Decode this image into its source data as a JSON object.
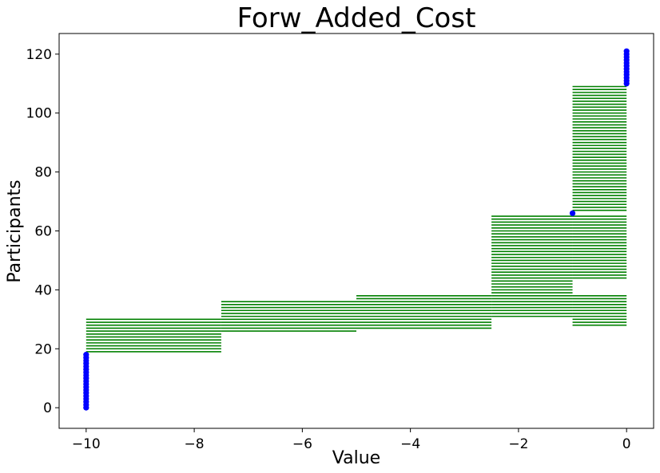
{
  "chart_data": {
    "type": "scatter",
    "title": "Forw_Added_Cost",
    "xlabel": "Value",
    "ylabel": "Participants",
    "xlim": [
      -10.5,
      0.5
    ],
    "ylim": [
      -7,
      127
    ],
    "x_ticks": [
      -10,
      -8,
      -6,
      -4,
      -2,
      0
    ],
    "x_tick_labels": [
      "−10",
      "−8",
      "−6",
      "−4",
      "−2",
      "0"
    ],
    "y_ticks": [
      0,
      20,
      40,
      60,
      80,
      100,
      120
    ],
    "y_tick_labels": [
      "0",
      "20",
      "40",
      "60",
      "80",
      "100",
      "120"
    ],
    "grid": false,
    "colors": {
      "segments": "#008000",
      "points": "#0000ff"
    },
    "segment_groups": [
      {
        "x_start": -10,
        "x_end": -7.5,
        "y_from": 19,
        "y_to": 30
      },
      {
        "x_start": -7.5,
        "x_end": -5,
        "y_from": 26,
        "y_to": 36
      },
      {
        "x_start": -5,
        "x_end": -2.5,
        "y_from": 27,
        "y_to": 38
      },
      {
        "x_start": -2.5,
        "x_end": -1,
        "y_from": 31,
        "y_to": 65
      },
      {
        "x_start": -1,
        "x_end": 0,
        "y_from": 28,
        "y_to": 38
      },
      {
        "x_start": -1,
        "x_end": 0,
        "y_from": 44,
        "y_to": 65
      },
      {
        "x_start": -1,
        "x_end": 0,
        "y_from": 67,
        "y_to": 109
      }
    ],
    "points": [
      {
        "x": -10,
        "y_from": 0,
        "y_to": 18
      },
      {
        "x": -1,
        "y_from": 66,
        "y_to": 66
      },
      {
        "x": 0,
        "y_from": 110,
        "y_to": 121
      }
    ]
  }
}
